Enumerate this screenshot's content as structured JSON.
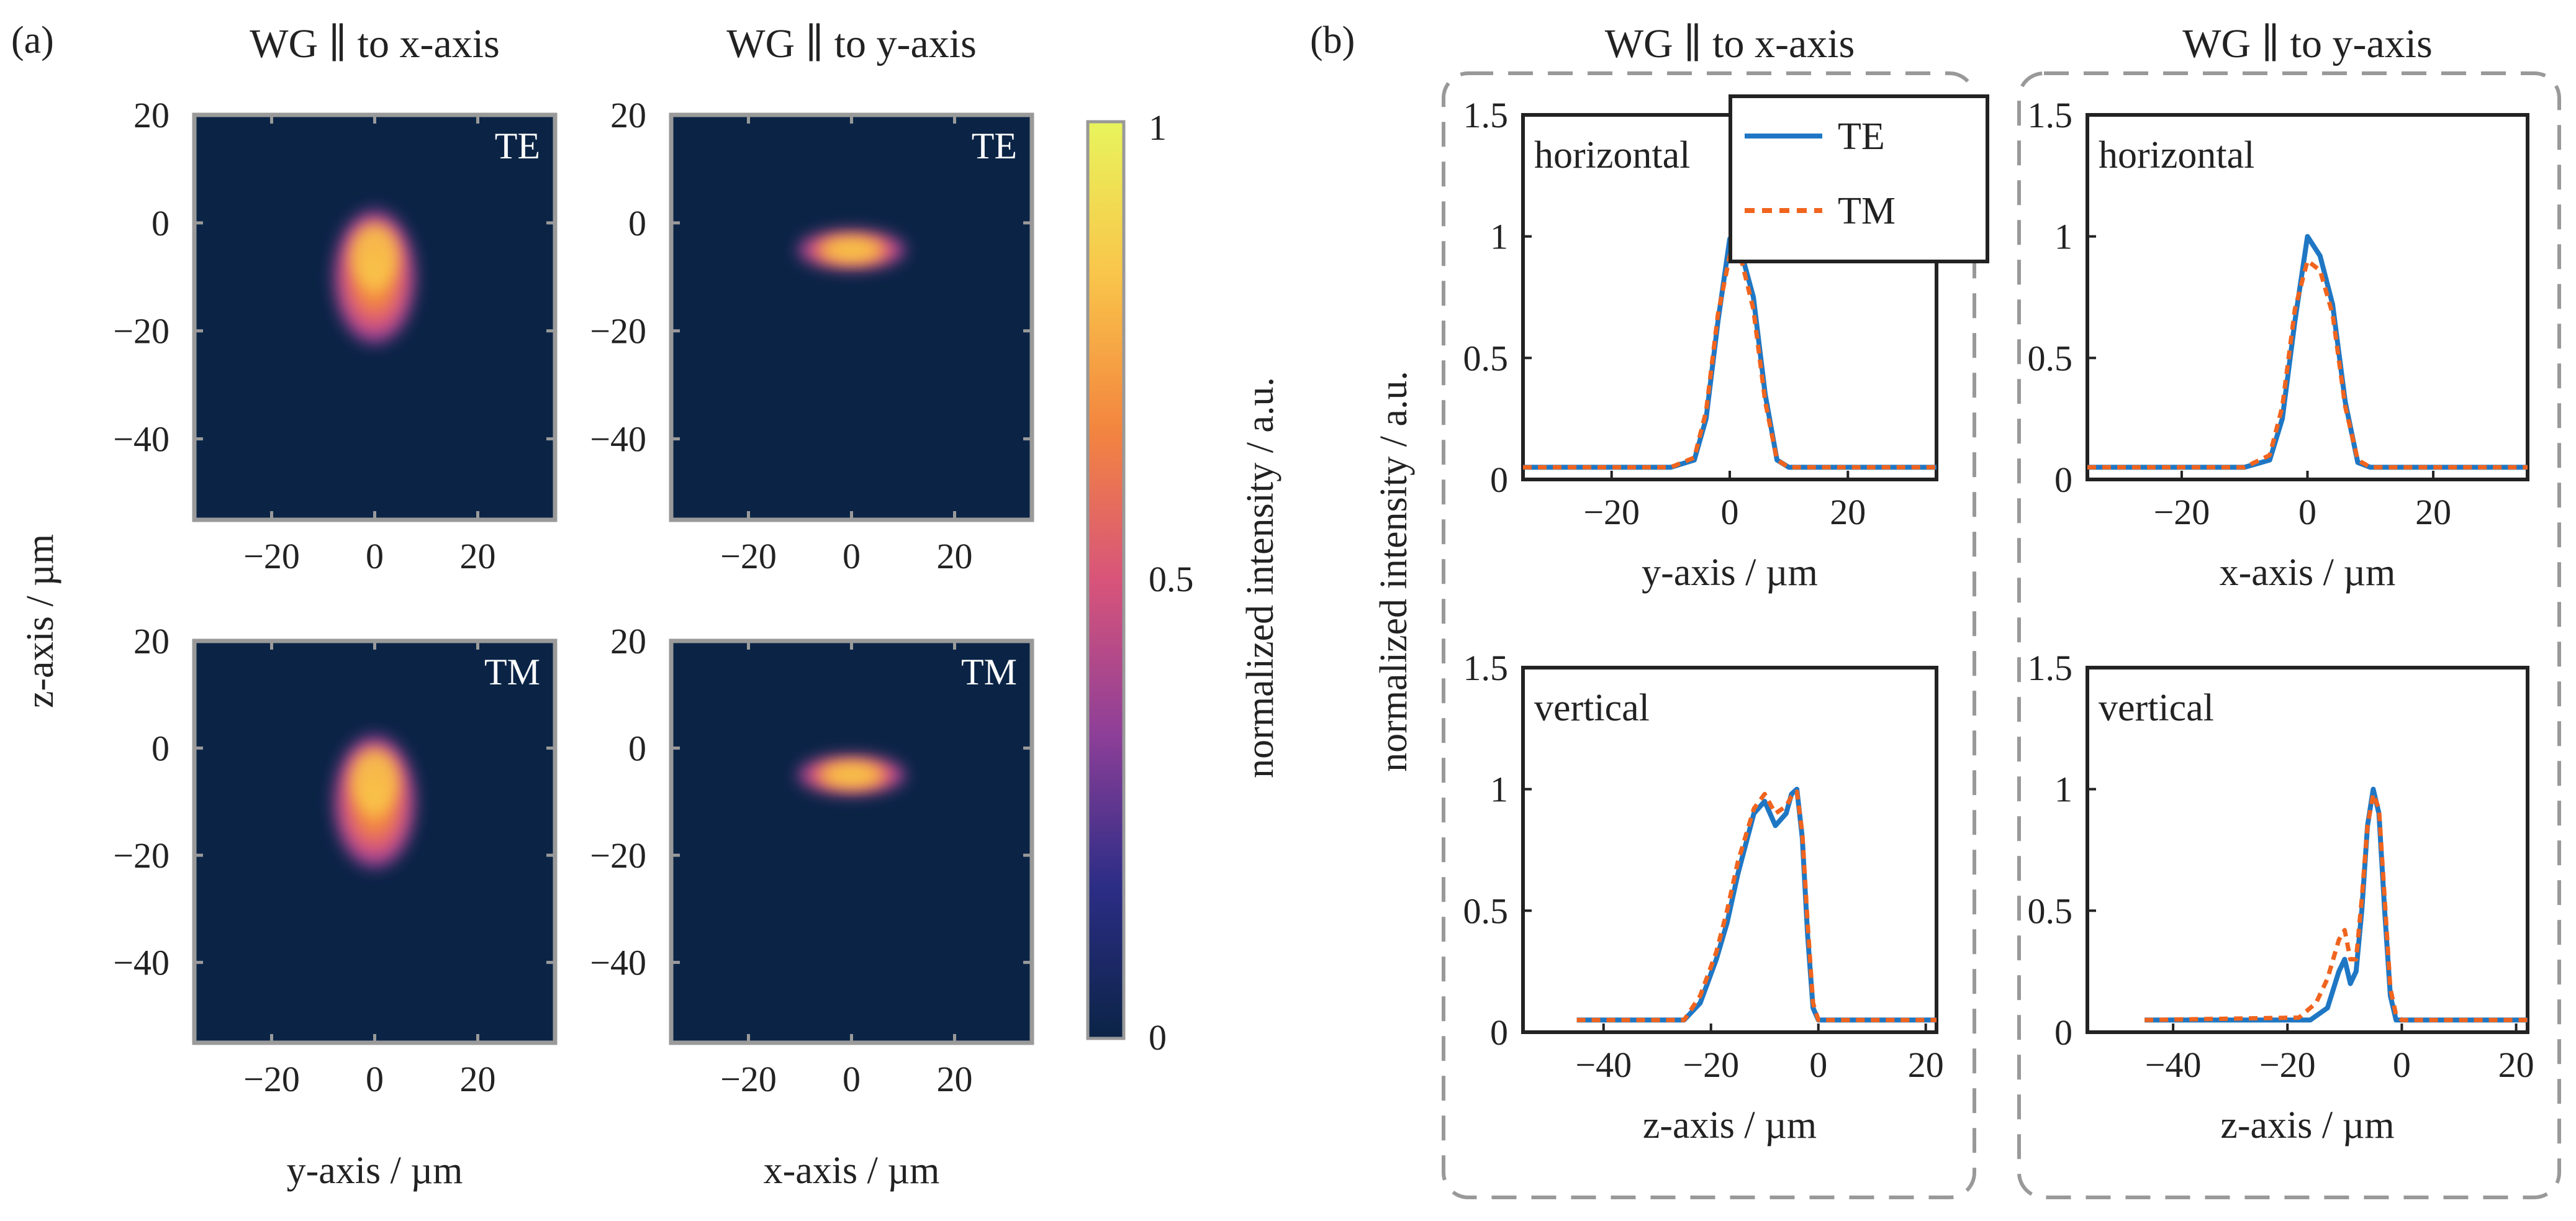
{
  "panel_a": {
    "letter": "(a)",
    "col_titles": [
      "WG ∥ to x-axis",
      "WG ∥ to y-axis"
    ],
    "row_labels": [
      "TE",
      "TM"
    ],
    "ylabel": "z-axis / µm",
    "xlabels": [
      "y-axis / µm",
      "x-axis / µm"
    ],
    "colorbar": {
      "label": "normalized intensity / a.u.",
      "ticks": [
        "0",
        "0.5",
        "1"
      ]
    },
    "colors": {
      "background": "#0b2446",
      "colormap": [
        "#0b2446",
        "#2c2d86",
        "#8e3f98",
        "#d8547a",
        "#f3863f",
        "#f9c54a",
        "#e8f45c"
      ]
    }
  },
  "panel_b": {
    "letter": "(b)",
    "col_titles": [
      "WG ∥ to x-axis",
      "WG ∥ to y-axis"
    ],
    "ylabel": "normalized intensity / a.u.",
    "legend": [
      "TE",
      "TM"
    ],
    "colors": {
      "TE": "#1f77c4",
      "TM": "#f0641e"
    }
  },
  "chart_data": [
    {
      "type": "heatmap",
      "panel": "a",
      "title": "WG ∥ to x-axis",
      "corner_label": "TE",
      "xlabel": "",
      "ylabel": "z-axis / µm",
      "xlim": [
        -35,
        35
      ],
      "ylim": [
        -55,
        20
      ],
      "xticks": [
        -20,
        0,
        20
      ],
      "yticks": [
        20,
        0,
        -20,
        -40
      ],
      "spot": {
        "cx": 0,
        "cz": -10,
        "sx": 4.2,
        "sz": 6.5,
        "peak_z": -6,
        "peak": 1.0
      }
    },
    {
      "type": "heatmap",
      "panel": "a",
      "title": "WG ∥ to y-axis",
      "corner_label": "TE",
      "xlabel": "",
      "ylabel": "",
      "xlim": [
        -35,
        35
      ],
      "ylim": [
        -55,
        20
      ],
      "xticks": [
        -20,
        0,
        20
      ],
      "yticks": [
        20,
        0,
        -20,
        -40
      ],
      "spot": {
        "cx": 0,
        "cz": -5,
        "sx": 5.5,
        "sz": 2.0,
        "peak_z": -5,
        "peak": 1.0
      }
    },
    {
      "type": "heatmap",
      "panel": "a",
      "title": "",
      "corner_label": "TM",
      "xlabel": "y-axis / µm",
      "ylabel": "z-axis / µm",
      "xlim": [
        -35,
        35
      ],
      "ylim": [
        -55,
        20
      ],
      "xticks": [
        -20,
        0,
        20
      ],
      "yticks": [
        20,
        0,
        -20,
        -40
      ],
      "spot": {
        "cx": 0,
        "cz": -10,
        "sx": 4.2,
        "sz": 6.5,
        "peak_z": -6,
        "peak": 1.0
      }
    },
    {
      "type": "heatmap",
      "panel": "a",
      "title": "",
      "corner_label": "TM",
      "xlabel": "x-axis / µm",
      "ylabel": "",
      "xlim": [
        -35,
        35
      ],
      "ylim": [
        -55,
        20
      ],
      "xticks": [
        -20,
        0,
        20
      ],
      "yticks": [
        20,
        0,
        -20,
        -40
      ],
      "spot": {
        "cx": 0,
        "cz": -5,
        "sx": 5.5,
        "sz": 2.0,
        "peak_z": -5,
        "peak": 1.0
      }
    },
    {
      "type": "line",
      "panel": "b",
      "title": "WG ∥ to x-axis",
      "inside_label": "horizontal",
      "xlabel": "y-axis / µm",
      "xlim": [
        -35,
        35
      ],
      "ylim": [
        0,
        1.5
      ],
      "xticks": [
        -20,
        0,
        20
      ],
      "yticks": [
        0,
        0.5,
        1,
        1.5
      ],
      "series": [
        {
          "name": "TE",
          "x": [
            -35,
            -10,
            -6,
            -4,
            -2,
            0,
            2,
            4,
            6,
            8,
            10,
            35
          ],
          "y": [
            0.05,
            0.05,
            0.08,
            0.25,
            0.65,
            0.99,
            0.93,
            0.75,
            0.35,
            0.08,
            0.05,
            0.05
          ]
        },
        {
          "name": "TM",
          "x": [
            -35,
            -10,
            -6,
            -4,
            -2,
            0,
            2,
            4,
            6,
            8,
            10,
            35
          ],
          "y": [
            0.05,
            0.05,
            0.09,
            0.28,
            0.68,
            0.92,
            0.9,
            0.7,
            0.32,
            0.08,
            0.05,
            0.05
          ]
        }
      ]
    },
    {
      "type": "line",
      "panel": "b",
      "title": "WG ∥ to y-axis",
      "inside_label": "horizontal",
      "xlabel": "x-axis / µm",
      "xlim": [
        -35,
        35
      ],
      "ylim": [
        0,
        1.5
      ],
      "xticks": [
        -20,
        0,
        20
      ],
      "yticks": [
        0,
        0.5,
        1,
        1.5
      ],
      "series": [
        {
          "name": "TE",
          "x": [
            -35,
            -10,
            -6,
            -4,
            -2,
            0,
            2,
            4,
            6,
            8,
            10,
            35
          ],
          "y": [
            0.05,
            0.05,
            0.08,
            0.25,
            0.65,
            1.0,
            0.92,
            0.72,
            0.32,
            0.07,
            0.05,
            0.05
          ]
        },
        {
          "name": "TM",
          "x": [
            -35,
            -10,
            -6,
            -4,
            -2,
            0,
            2,
            4,
            6,
            8,
            10,
            35
          ],
          "y": [
            0.05,
            0.05,
            0.1,
            0.3,
            0.7,
            0.9,
            0.86,
            0.68,
            0.3,
            0.08,
            0.05,
            0.05
          ]
        }
      ]
    },
    {
      "type": "line",
      "panel": "b",
      "title": "",
      "inside_label": "vertical",
      "xlabel": "z-axis / µm",
      "xlim": [
        -55,
        22
      ],
      "ylim": [
        0,
        1.5
      ],
      "xticks": [
        -40,
        -20,
        0,
        20
      ],
      "yticks": [
        0,
        0.5,
        1,
        1.5
      ],
      "series": [
        {
          "name": "TE",
          "x": [
            -45,
            -25,
            -22,
            -19,
            -17,
            -15,
            -12,
            -10,
            -8,
            -6,
            -5,
            -4,
            -3,
            -2,
            -1,
            0,
            22
          ],
          "y": [
            0.05,
            0.05,
            0.12,
            0.3,
            0.45,
            0.65,
            0.9,
            0.95,
            0.85,
            0.9,
            0.98,
            1.0,
            0.8,
            0.4,
            0.1,
            0.05,
            0.05
          ]
        },
        {
          "name": "TM",
          "x": [
            -45,
            -25,
            -22,
            -19,
            -17,
            -15,
            -12,
            -10,
            -8,
            -6,
            -5,
            -4,
            -3,
            -2,
            -1,
            0,
            22
          ],
          "y": [
            0.05,
            0.05,
            0.15,
            0.33,
            0.5,
            0.7,
            0.92,
            0.98,
            0.9,
            0.93,
            0.97,
            0.99,
            0.82,
            0.45,
            0.12,
            0.05,
            0.05
          ]
        }
      ]
    },
    {
      "type": "line",
      "panel": "b",
      "title": "",
      "inside_label": "vertical",
      "xlabel": "z-axis / µm",
      "xlim": [
        -55,
        22
      ],
      "ylim": [
        0,
        1.5
      ],
      "xticks": [
        -40,
        -20,
        0,
        20
      ],
      "yticks": [
        0,
        0.5,
        1,
        1.5
      ],
      "series": [
        {
          "name": "TE",
          "x": [
            -45,
            -16,
            -13,
            -11,
            -10,
            -9,
            -8,
            -7,
            -6,
            -5,
            -4,
            -3,
            -2,
            -1,
            0,
            22
          ],
          "y": [
            0.05,
            0.05,
            0.1,
            0.25,
            0.3,
            0.2,
            0.25,
            0.5,
            0.85,
            1.0,
            0.9,
            0.5,
            0.15,
            0.05,
            0.05,
            0.05
          ]
        },
        {
          "name": "TM",
          "x": [
            -45,
            -18,
            -15,
            -13,
            -11,
            -10,
            -9,
            -8,
            -7,
            -6,
            -5,
            -4,
            -3,
            -2,
            -1,
            0,
            22
          ],
          "y": [
            0.05,
            0.06,
            0.12,
            0.22,
            0.38,
            0.42,
            0.3,
            0.3,
            0.55,
            0.85,
            0.98,
            0.92,
            0.55,
            0.18,
            0.07,
            0.05,
            0.05
          ]
        }
      ]
    }
  ]
}
